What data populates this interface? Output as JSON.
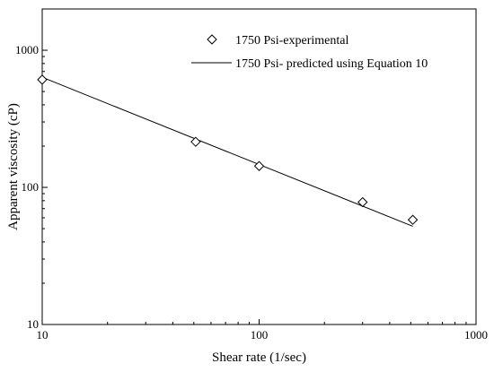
{
  "chart_data": {
    "type": "scatter",
    "x_scale": "log",
    "y_scale": "log",
    "xlim": [
      10,
      1000
    ],
    "ylim": [
      10,
      2000
    ],
    "xlabel": "Shear rate (1/sec)",
    "ylabel": "Apparent viscosity (cP)",
    "x_ticks": [
      {
        "value": 10,
        "label": "10"
      },
      {
        "value": 100,
        "label": "100"
      },
      {
        "value": 1000,
        "label": "1000"
      }
    ],
    "y_ticks": [
      {
        "value": 10,
        "label": "10"
      },
      {
        "value": 100,
        "label": "100"
      },
      {
        "value": 1000,
        "label": "1000"
      }
    ],
    "grid": false,
    "legend_position": "top-right",
    "series": [
      {
        "name": "1750 Psi-experimental",
        "kind": "scatter",
        "marker": "diamond-open",
        "x": [
          10,
          51,
          100,
          300,
          511
        ],
        "y": [
          610,
          215,
          143,
          78,
          58
        ]
      },
      {
        "name": "1750 Psi- predicted using Equation 10",
        "kind": "line",
        "x": [
          10,
          511
        ],
        "y": [
          635,
          52
        ]
      }
    ]
  }
}
